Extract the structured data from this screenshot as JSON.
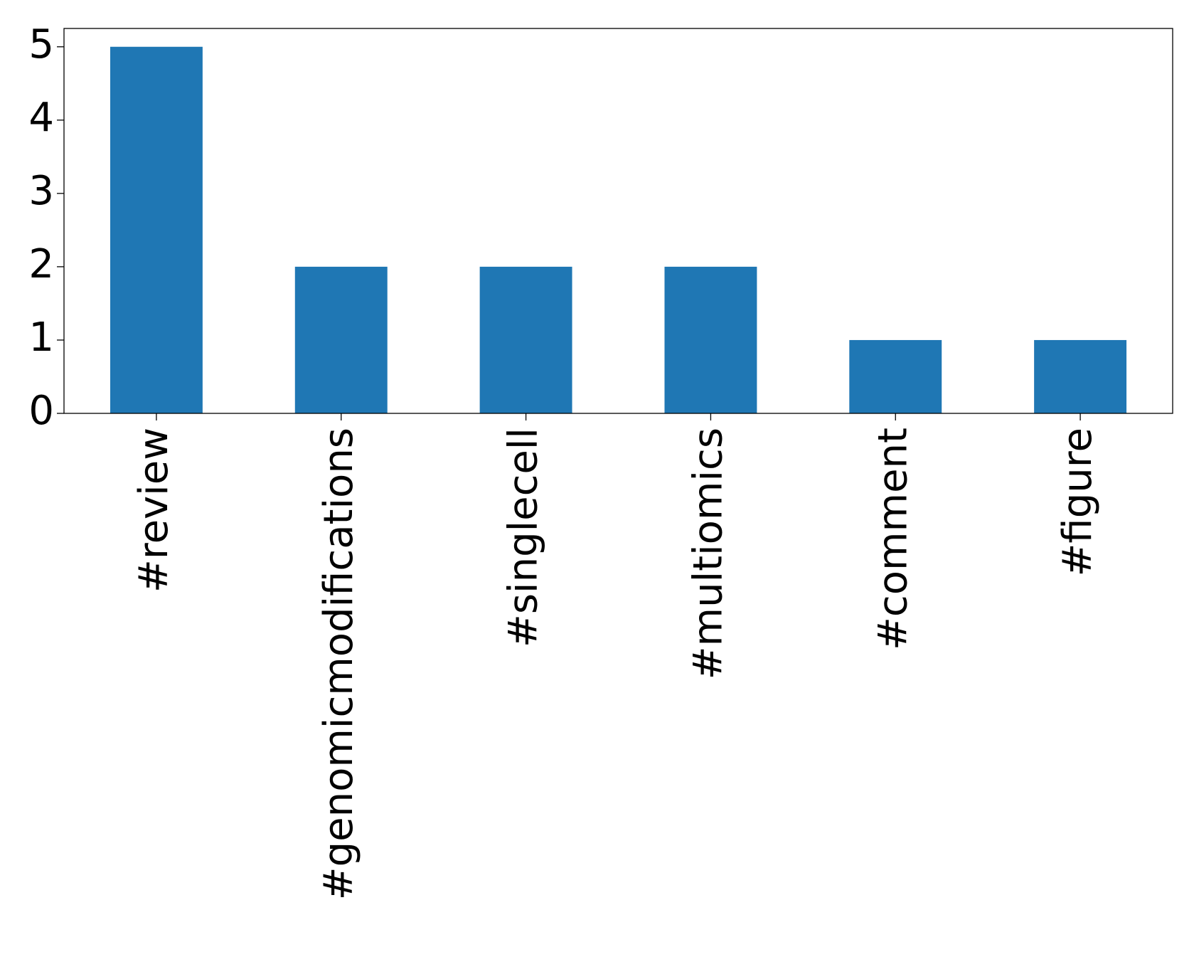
{
  "chart_data": {
    "type": "bar",
    "title": "",
    "xlabel": "",
    "ylabel": "",
    "categories": [
      "#review",
      "#genomicmodifications",
      "#singlecell",
      "#multiomics",
      "#comment",
      "#figure"
    ],
    "values": [
      5,
      2,
      2,
      2,
      1,
      1
    ],
    "ylim": [
      0,
      5.25
    ],
    "yticks": [
      "0",
      "1",
      "2",
      "3",
      "4",
      "5"
    ],
    "grid": false,
    "legend": "none",
    "bar_color": "#1f77b4",
    "axis_color": "#000000"
  }
}
